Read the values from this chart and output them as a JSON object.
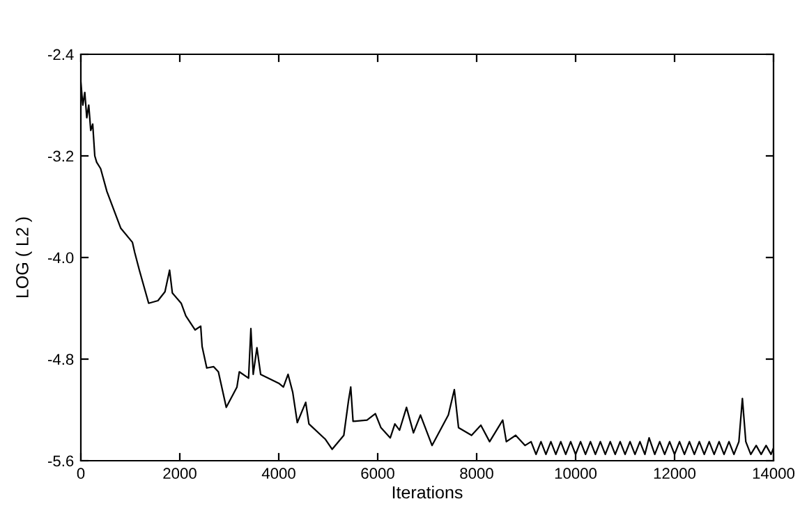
{
  "chart_data": {
    "type": "line",
    "xlabel": "Iterations",
    "ylabel": "LOG ( L2 )",
    "xlim": [
      0,
      14000
    ],
    "xticks": [
      0,
      2000,
      4000,
      6000,
      8000,
      10000,
      12000,
      14000
    ],
    "ylim": [
      -5.6,
      -2.4
    ],
    "yticks": [
      -5.6,
      -4.8,
      {
        "value": -4.0,
        "label": "-4.0"
      },
      -3.2,
      -2.4
    ],
    "grid": false,
    "legend": false,
    "marker": "none",
    "line_style": "solid",
    "series": [
      {
        "color": "#000000",
        "x": [
          0,
          40,
          80,
          120,
          160,
          200,
          240,
          282,
          320,
          400,
          527,
          808,
          1042,
          1089,
          1183,
          1371,
          1559,
          1700,
          1794,
          1850,
          2028,
          2122,
          2310,
          2423,
          2451,
          2545,
          2685,
          2780,
          2939,
          3155,
          3203,
          3390,
          3437,
          3484,
          3559,
          3634,
          4000,
          4094,
          4188,
          4282,
          4375,
          4545,
          4610,
          4939,
          5080,
          5315,
          5409,
          5455,
          5502,
          5784,
          5953,
          6066,
          6254,
          6347,
          6441,
          6582,
          6723,
          6864,
          7099,
          7428,
          7549,
          7634,
          7897,
          8085,
          8262,
          8527,
          8600,
          8789,
          8977,
          9100,
          9200,
          9300,
          9400,
          9500,
          9600,
          9700,
          9800,
          9900,
          10000,
          10100,
          10200,
          10300,
          10400,
          10500,
          10600,
          10700,
          10800,
          10900,
          11000,
          11100,
          11200,
          11300,
          11400,
          11485,
          11600,
          11700,
          11800,
          11900,
          12000,
          12100,
          12200,
          12300,
          12400,
          12500,
          12600,
          12700,
          12800,
          12900,
          13000,
          13100,
          13200,
          13300,
          13371,
          13440,
          13540,
          13650,
          13750,
          13850,
          13950,
          14000
        ],
        "values": [
          -2.62,
          -2.8,
          -2.7,
          -2.9,
          -2.8,
          -3.0,
          -2.95,
          -3.2,
          -3.25,
          -3.3,
          -3.48,
          -3.77,
          -3.88,
          -3.96,
          -4.1,
          -4.36,
          -4.34,
          -4.27,
          -4.1,
          -4.28,
          -4.36,
          -4.46,
          -4.57,
          -4.54,
          -4.7,
          -4.87,
          -4.86,
          -4.9,
          -5.18,
          -5.02,
          -4.9,
          -4.95,
          -4.56,
          -4.92,
          -4.71,
          -4.92,
          -4.99,
          -5.02,
          -4.92,
          -5.06,
          -5.3,
          -5.14,
          -5.31,
          -5.43,
          -5.51,
          -5.4,
          -5.13,
          -5.02,
          -5.29,
          -5.28,
          -5.23,
          -5.34,
          -5.42,
          -5.31,
          -5.36,
          -5.18,
          -5.38,
          -5.24,
          -5.48,
          -5.24,
          -5.04,
          -5.34,
          -5.4,
          -5.32,
          -5.45,
          -5.28,
          -5.45,
          -5.4,
          -5.48,
          -5.45,
          -5.55,
          -5.45,
          -5.55,
          -5.45,
          -5.55,
          -5.45,
          -5.55,
          -5.45,
          -5.55,
          -5.45,
          -5.55,
          -5.45,
          -5.55,
          -5.45,
          -5.55,
          -5.45,
          -5.55,
          -5.45,
          -5.55,
          -5.45,
          -5.55,
          -5.45,
          -5.55,
          -5.42,
          -5.55,
          -5.45,
          -5.55,
          -5.45,
          -5.55,
          -5.45,
          -5.55,
          -5.45,
          -5.55,
          -5.45,
          -5.55,
          -5.45,
          -5.55,
          -5.45,
          -5.55,
          -5.45,
          -5.55,
          -5.45,
          -5.11,
          -5.45,
          -5.55,
          -5.48,
          -5.55,
          -5.48,
          -5.55,
          -5.5
        ]
      }
    ]
  }
}
